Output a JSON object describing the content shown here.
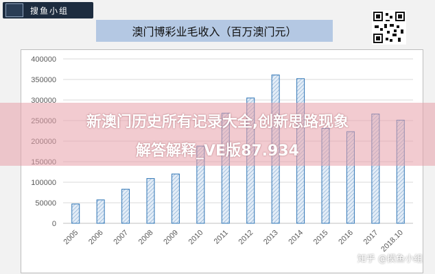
{
  "logo": {
    "text": "搜鱼小组"
  },
  "chart_data": {
    "type": "bar",
    "title": "澳门博彩业毛收入（百万澳门元）",
    "categories": [
      "2005",
      "2006",
      "2007",
      "2008",
      "2009",
      "2010",
      "2011",
      "2012",
      "2013",
      "2014",
      "2015",
      "2016",
      "2017",
      "2018.10"
    ],
    "values": [
      47000,
      57000,
      83000,
      109000,
      120000,
      188000,
      268000,
      305000,
      361000,
      352000,
      231000,
      223000,
      266000,
      251000
    ],
    "ylim": [
      0,
      400000
    ],
    "yticks": [
      0,
      50000,
      100000,
      150000,
      200000,
      250000,
      300000,
      350000,
      400000
    ],
    "grid": true,
    "bar_fill": "#dbe8f4",
    "bar_stroke": "#2e74b5"
  },
  "watermark": {
    "line1": "新澳门历史所有记录大全,创新思路现象",
    "line2": "解答解释_VE版87.934",
    "footer": "知乎 @摸鱼小组"
  }
}
